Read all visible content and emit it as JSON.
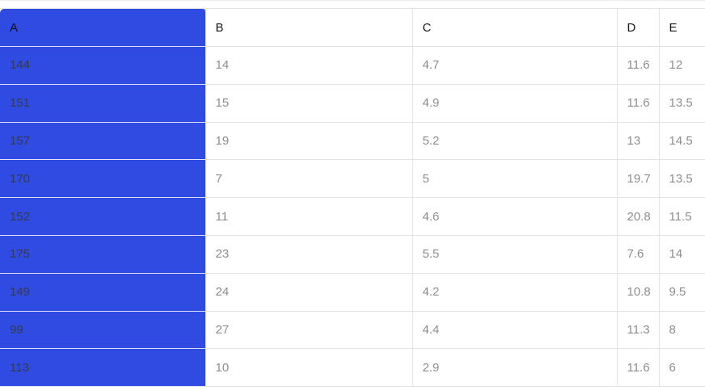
{
  "grid": {
    "columns": [
      {
        "label": "A",
        "selected": true
      },
      {
        "label": "B",
        "selected": false
      },
      {
        "label": "C",
        "selected": false
      },
      {
        "label": "D",
        "selected": false
      },
      {
        "label": "E",
        "selected": false
      }
    ],
    "rows": [
      [
        "144",
        "14",
        "4.7",
        "11.6",
        "12"
      ],
      [
        "151",
        "15",
        "4.9",
        "11.6",
        "13.5"
      ],
      [
        "157",
        "19",
        "5.2",
        "13",
        "14.5"
      ],
      [
        "170",
        "7",
        "5",
        "19.7",
        "13.5"
      ],
      [
        "152",
        "11",
        "4.6",
        "20.8",
        "11.5"
      ],
      [
        "175",
        "23",
        "5.5",
        "7.6",
        "14"
      ],
      [
        "149",
        "24",
        "4.2",
        "10.8",
        "9.5"
      ],
      [
        "99",
        "27",
        "4.4",
        "11.3",
        "8"
      ],
      [
        "113",
        "10",
        "2.9",
        "11.6",
        "6"
      ]
    ]
  },
  "colors": {
    "selected_column_bg": "#2F4BE2",
    "grid_border": "#e3e3e3",
    "header_text": "#16181d",
    "cell_text": "#8d8d8d",
    "selected_cell_text": "#333a52"
  }
}
